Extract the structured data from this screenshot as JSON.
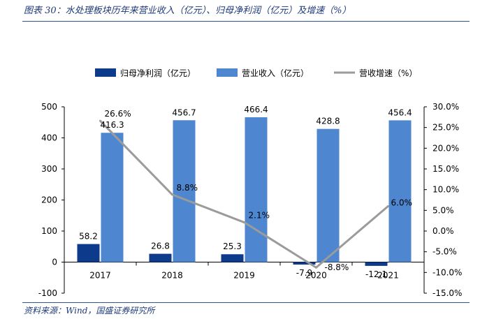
{
  "caption": "图表 30：水处理板块历年来营业收入（亿元）、归母净利润（亿元）及增速（%）",
  "source": "资料来源：Wind，国盛证券研究所",
  "colors": {
    "profit": "#0e3a8c",
    "revenue": "#4f86d0",
    "growth": "#9b9b9b",
    "rule": "#2f5597",
    "caption": "#1f3a7a"
  },
  "chart_data": {
    "type": "bar",
    "categories": [
      "2017",
      "2018",
      "2019",
      "2020",
      "2021"
    ],
    "series": [
      {
        "name": "归母净利润（亿元）",
        "type": "bar",
        "axis": "left",
        "values": [
          58.2,
          26.8,
          25.3,
          -7.9,
          -12.1
        ],
        "labels": [
          "58.2",
          "26.8",
          "25.3",
          "-7.9",
          "-12.1"
        ]
      },
      {
        "name": "营业收入（亿元）",
        "type": "bar",
        "axis": "left",
        "values": [
          416.3,
          456.7,
          466.4,
          428.8,
          456.4
        ],
        "labels": [
          "416.3",
          "456.7",
          "466.4",
          "428.8",
          "456.4"
        ]
      },
      {
        "name": "营收增速（%）",
        "type": "line",
        "axis": "right",
        "values": [
          26.6,
          8.8,
          2.1,
          -8.8,
          6.0
        ],
        "labels": [
          "26.6%",
          "8.8%",
          "2.1%",
          "-8.8%",
          "6.0%"
        ]
      }
    ],
    "y_left": {
      "min": -100,
      "max": 500,
      "ticks": [
        -100,
        0,
        100,
        200,
        300,
        400,
        500
      ],
      "tick_labels": [
        "-100",
        "0",
        "100",
        "200",
        "300",
        "400",
        "500"
      ]
    },
    "y_right": {
      "min": -15,
      "max": 30,
      "ticks": [
        -15,
        -10,
        -5,
        0,
        5,
        10,
        15,
        20,
        25,
        30
      ],
      "tick_labels": [
        "-15.0%",
        "-10.0%",
        "-5.0%",
        "0.0%",
        "5.0%",
        "10.0%",
        "15.0%",
        "20.0%",
        "25.0%",
        "30.0%"
      ]
    },
    "legend_position": "top",
    "grid": false
  }
}
